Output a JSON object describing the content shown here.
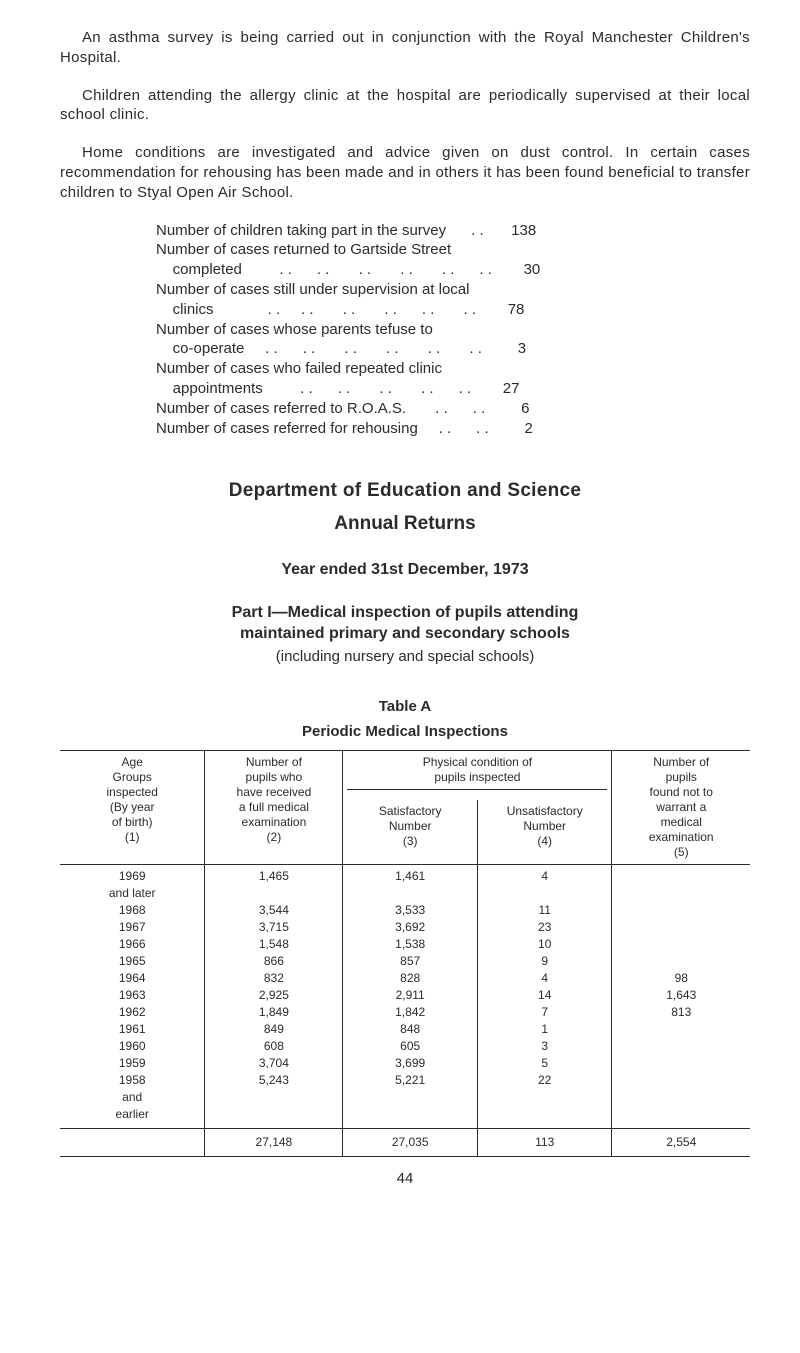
{
  "paras": {
    "p1": "An asthma survey is being carried out in conjunction with the Royal Manchester Children's Hospital.",
    "p2": "Children attending the allergy clinic at the hospital are periodically supervised at their local school clinic.",
    "p3": "Home conditions are investigated and advice given on dust control. In certain cases recommendation for rehousing has been made and in others it has been found beneficial to transfer children to Styal Open Air School."
  },
  "stats": [
    {
      "label": "Number of children taking part in the survey",
      "dots": "      . .",
      "value": "138",
      "indent": 0
    },
    {
      "label": "Number of cases returned to Gartside Street",
      "dots": "",
      "value": " ",
      "indent": 0
    },
    {
      "label": "completed         . .      . .       . .       . .       . .      . .",
      "dots": "",
      "value": "30",
      "indent": 1
    },
    {
      "label": "Number of cases still under supervision at local",
      "dots": "",
      "value": " ",
      "indent": 0
    },
    {
      "label": "clinics             . .     . .       . .       . .      . .       . .",
      "dots": "",
      "value": "78",
      "indent": 1
    },
    {
      "label": "Number of cases whose parents tefuse to",
      "dots": "",
      "value": " ",
      "indent": 0
    },
    {
      "label": "co-operate     . .      . .       . .       . .       . .       . .",
      "dots": "",
      "value": "3",
      "indent": 1
    },
    {
      "label": "Number of cases who failed repeated clinic",
      "dots": "",
      "value": " ",
      "indent": 0
    },
    {
      "label": "appointments         . .      . .       . .       . .      . .",
      "dots": "",
      "value": "27",
      "indent": 1
    },
    {
      "label": "Number of cases referred to R.O.A.S.       . .      . .",
      "dots": "",
      "value": "6",
      "indent": 0
    },
    {
      "label": "Number of cases referred for rehousing     . .      . .",
      "dots": "",
      "value": "2",
      "indent": 0
    }
  ],
  "headings": {
    "h1": "Department of Education and Science",
    "h2": "Annual Returns",
    "h3": "Year ended 31st December, 1973",
    "h4a": "Part I—Medical inspection of pupils attending",
    "h4b": "maintained primary and secondary schools",
    "h4sub": "(including nursery and special schools)",
    "tcap": "Table A",
    "tsub": "Periodic Medical Inspections"
  },
  "table": {
    "head": {
      "c1a": "Age",
      "c1b": "Groups",
      "c1c": "inspected",
      "c1d": "(By year",
      "c1e": "of birth)",
      "c1f": "(1)",
      "c2a": "Number of",
      "c2b": "pupils who",
      "c2c": "have received",
      "c2d": "a full medical",
      "c2e": "examination",
      "c2f": "(2)",
      "spa": "Physical condition of",
      "spb": "pupils inspected",
      "c3a": "Satisfactory",
      "c3b": "Number",
      "c3c": "(3)",
      "c4a": "Unsatisfactory",
      "c4b": "Number",
      "c4c": "(4)",
      "c5a": "Number of",
      "c5b": "pupils",
      "c5c": "found not to",
      "c5d": "warrant a",
      "c5e": "medical",
      "c5f": "examination",
      "c5g": "(5)"
    },
    "rows": [
      {
        "c1": "1969",
        "c2": "1,465",
        "c3": "1,461",
        "c4": "4",
        "c5": ""
      },
      {
        "c1": "and later",
        "c2": "",
        "c3": "",
        "c4": "",
        "c5": ""
      },
      {
        "c1": "1968",
        "c2": "3,544",
        "c3": "3,533",
        "c4": "11",
        "c5": ""
      },
      {
        "c1": "1967",
        "c2": "3,715",
        "c3": "3,692",
        "c4": "23",
        "c5": ""
      },
      {
        "c1": "1966",
        "c2": "1,548",
        "c3": "1,538",
        "c4": "10",
        "c5": ""
      },
      {
        "c1": "1965",
        "c2": "866",
        "c3": "857",
        "c4": "9",
        "c5": ""
      },
      {
        "c1": "1964",
        "c2": "832",
        "c3": "828",
        "c4": "4",
        "c5": "98"
      },
      {
        "c1": "1963",
        "c2": "2,925",
        "c3": "2,911",
        "c4": "14",
        "c5": "1,643"
      },
      {
        "c1": "1962",
        "c2": "1,849",
        "c3": "1,842",
        "c4": "7",
        "c5": "813"
      },
      {
        "c1": "1961",
        "c2": "849",
        "c3": "848",
        "c4": "1",
        "c5": ""
      },
      {
        "c1": "1960",
        "c2": "608",
        "c3": "605",
        "c4": "3",
        "c5": ""
      },
      {
        "c1": "1959",
        "c2": "3,704",
        "c3": "3,699",
        "c4": "5",
        "c5": ""
      },
      {
        "c1": "1958",
        "c2": "5,243",
        "c3": "5,221",
        "c4": "22",
        "c5": ""
      },
      {
        "c1": "and",
        "c2": "",
        "c3": "",
        "c4": "",
        "c5": ""
      },
      {
        "c1": "earlier",
        "c2": "",
        "c3": "",
        "c4": "",
        "c5": ""
      }
    ],
    "totals": {
      "c2": "27,148",
      "c3": "27,035",
      "c4": "113",
      "c5": "2,554"
    }
  },
  "page_num": "44"
}
